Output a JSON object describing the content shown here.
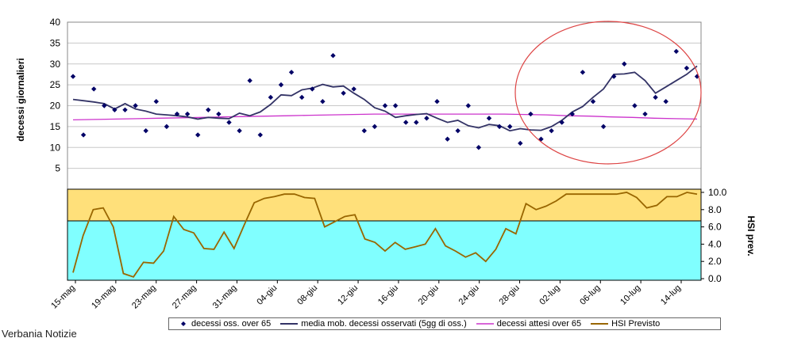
{
  "chart_data": {
    "type": "line",
    "title": "",
    "top_panel": {
      "ylabel": "decessi giornalieri",
      "ylim": [
        0,
        40
      ],
      "yticks": [
        5,
        10,
        15,
        20,
        25,
        30,
        35,
        40
      ],
      "observed": [
        27,
        13,
        24,
        20,
        19,
        19,
        20,
        14,
        21,
        15,
        18,
        18,
        13,
        19,
        18,
        16,
        14,
        26,
        13,
        22,
        25,
        28,
        22,
        24,
        21,
        32,
        23,
        24,
        14,
        15,
        20,
        20,
        16,
        16,
        17,
        21,
        12,
        14,
        20,
        10,
        17,
        15,
        15,
        11,
        18,
        12,
        14,
        16,
        18,
        28,
        21,
        15,
        27,
        30,
        20,
        18,
        22,
        21,
        33,
        29,
        27
      ],
      "moving_avg": [
        21.5,
        21.2,
        20.9,
        20.5,
        19.2,
        20.5,
        19.2,
        18.7,
        18.0,
        17.8,
        17.6,
        17.3,
        16.8,
        17.2,
        17.0,
        16.9,
        18.2,
        17.6,
        18.5,
        20.3,
        22.6,
        22.4,
        23.8,
        24.2,
        25.1,
        24.5,
        24.7,
        23.0,
        21.5,
        19.5,
        18.7,
        17.2,
        17.6,
        17.9,
        18.1,
        17.0,
        16.0,
        16.5,
        15.2,
        14.7,
        15.5,
        15.2,
        14.0,
        14.5,
        14.2,
        14.1,
        15.0,
        16.5,
        18.5,
        19.8,
        22.0,
        24.0,
        27.5,
        27.6,
        28.0,
        26.0,
        23.0,
        24.5,
        26.0,
        27.5,
        29.5
      ],
      "expected": [
        16.6,
        16.7,
        16.8,
        16.9,
        17.0,
        17.1,
        17.2,
        17.3,
        17.4,
        17.5,
        17.6,
        17.7,
        17.8,
        17.9,
        18.0,
        18.0,
        18.0,
        18.0,
        18.0,
        18.0,
        18.0,
        17.9,
        17.8,
        17.6,
        17.5,
        17.3,
        17.2,
        17.0,
        16.9,
        16.8
      ],
      "annotation": "circled region: 02-lug to 16-lug"
    },
    "bottom_panel": {
      "ylabel": "HSI prev.",
      "ylim": [
        0,
        10
      ],
      "yticks": [
        "0.0",
        "2.0",
        "4.0",
        "6.0",
        "8.0",
        "10.0"
      ],
      "bands": [
        {
          "from": 0,
          "to": 6.7,
          "color": "#80FFFF"
        },
        {
          "from": 6.7,
          "to": 10,
          "color": "#FFE07A"
        }
      ],
      "hsi": [
        0.7,
        5.0,
        8.0,
        8.2,
        6.0,
        0.6,
        0.2,
        1.9,
        1.8,
        3.2,
        7.2,
        5.7,
        5.3,
        3.5,
        3.4,
        5.4,
        3.5,
        6.2,
        8.8,
        9.3,
        9.5,
        9.8,
        9.8,
        9.4,
        9.3,
        6.0,
        6.6,
        7.2,
        7.4,
        4.6,
        4.2,
        3.2,
        4.2,
        3.4,
        3.7,
        4.0,
        5.8,
        3.8,
        3.2,
        2.5,
        3.0,
        2.0,
        3.4,
        5.8,
        5.2,
        8.7,
        8.0,
        8.4,
        9.0,
        9.8,
        9.8,
        9.8,
        9.8,
        9.8,
        9.8,
        10.0,
        9.4,
        8.2,
        8.5,
        9.5,
        9.5,
        10.0,
        9.8
      ]
    },
    "categories": [
      "15-mag",
      "19-mag",
      "23-mag",
      "27-mag",
      "31-mag",
      "04-giu",
      "08-giu",
      "12-giu",
      "16-giu",
      "20-giu",
      "24-giu",
      "28-giu",
      "02-lug",
      "06-lug",
      "10-lug",
      "14-lug"
    ],
    "legend": [
      {
        "name": "decessi oss. over 65",
        "color": "#000066",
        "marker": "diamond"
      },
      {
        "name": "media mob. decessi osservati (5gg di oss.)",
        "color": "#333366",
        "marker": "line"
      },
      {
        "name": "decessi attesi over 65",
        "color": "#CC33CC",
        "marker": "line"
      },
      {
        "name": "HSI Previsto",
        "color": "#996600",
        "marker": "line"
      }
    ]
  },
  "footer": {
    "credit": "Verbania Notizie"
  }
}
